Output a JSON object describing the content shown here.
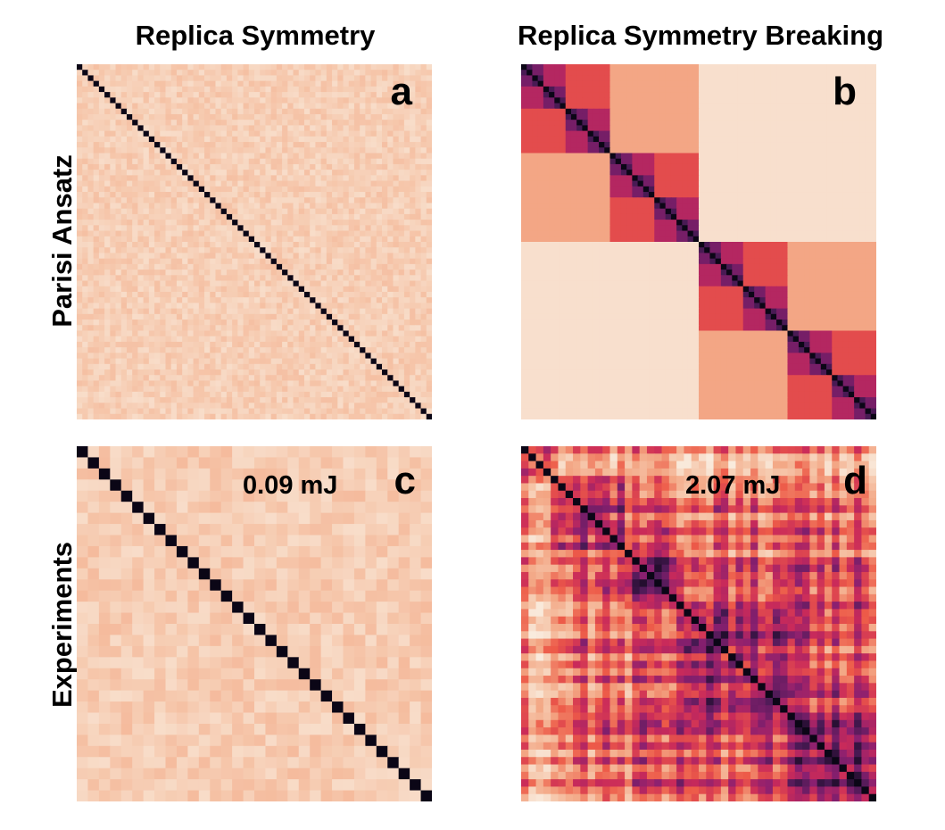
{
  "columns": {
    "left": "Replica Symmetry",
    "right": "Replica Symmetry Breaking"
  },
  "rows": {
    "top": "Parisi Ansatz",
    "bottom": "Experiments"
  },
  "panels": {
    "a": {
      "letter": "a",
      "energy": ""
    },
    "b": {
      "letter": "b",
      "energy": ""
    },
    "c": {
      "letter": "c",
      "energy": "0.09 mJ"
    },
    "d": {
      "letter": "d",
      "energy": "2.07 mJ"
    }
  },
  "colors": {
    "scale": [
      "#f9ebdd",
      "#f6c9ae",
      "#f3a583",
      "#ed5a48",
      "#c92a5a",
      "#8a2070",
      "#4a1a55",
      "#0b0616"
    ]
  },
  "chart_data": [
    {
      "panel": "a",
      "type": "heatmap",
      "size": 64,
      "description_values": "off-diagonal overlap uniform low (~0.12); diagonal = 1",
      "off_diagonal_mean": 0.12,
      "diagonal": 1.0
    },
    {
      "panel": "b",
      "type": "heatmap",
      "size": 64,
      "hierarchy_levels": [
        {
          "block": 64,
          "value": 0.05
        },
        {
          "block": 32,
          "value": 0.28
        },
        {
          "block": 16,
          "value": 0.47
        },
        {
          "block": 8,
          "value": 0.62
        },
        {
          "block": 4,
          "value": 0.76
        },
        {
          "block": 2,
          "value": 0.86
        },
        {
          "block": 1,
          "value": 1.0
        }
      ]
    },
    {
      "panel": "c",
      "type": "heatmap",
      "size": 32,
      "off_diagonal_mean": 0.13,
      "diagonal": 1.0
    },
    {
      "panel": "d",
      "type": "heatmap",
      "size": 48,
      "off_diagonal_mean": 0.55,
      "diagonal": 1.0
    }
  ]
}
